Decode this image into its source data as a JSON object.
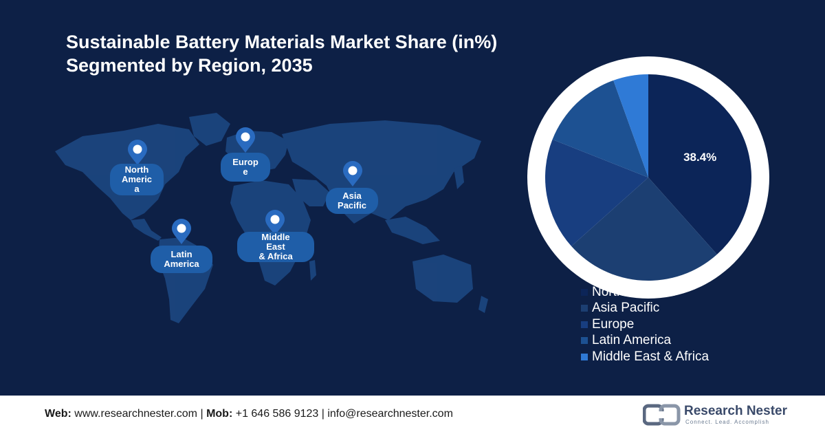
{
  "title": {
    "line1": "Sustainable Battery Materials Market Share (in%)",
    "line2": "Segmented by Region, 2035"
  },
  "map": {
    "regions": [
      {
        "name_lines": [
          "North",
          "Americ",
          "a"
        ]
      },
      {
        "name_lines": [
          "Europ",
          "e"
        ]
      },
      {
        "name_lines": [
          "Asia",
          "Pacific"
        ]
      },
      {
        "name_lines": [
          "Middle",
          "East",
          "& Africa"
        ]
      },
      {
        "name_lines": [
          "Latin",
          "America"
        ]
      }
    ],
    "pin_icon": "location-pin-icon"
  },
  "chart_data": {
    "type": "pie",
    "title": "Sustainable Battery Materials Market Share (in%) Segmented by Region, 2035",
    "labels": [
      "North America",
      "Asia Pacific",
      "Europe",
      "Latin America",
      "Middle East & Africa"
    ],
    "values": [
      38.4,
      25.0,
      17.6,
      13.5,
      5.5
    ],
    "data_labels": [
      "38.4%",
      "",
      "",
      "",
      ""
    ],
    "colors": [
      "#0c2558",
      "#1c3f72",
      "#183e80",
      "#1d5192",
      "#2f7ad6"
    ],
    "legend": "bottom-right"
  },
  "footer": {
    "web_label": "Web:",
    "web": "www.researchnester.com",
    "sep1": "|",
    "mob_label": "Mob:",
    "mob": "+1 646 586 9123",
    "sep2": "|",
    "email": "info@researchnester.com",
    "logo_name": "Research Nester",
    "logo_tagline": "Connect. Lead. Accomplish"
  }
}
